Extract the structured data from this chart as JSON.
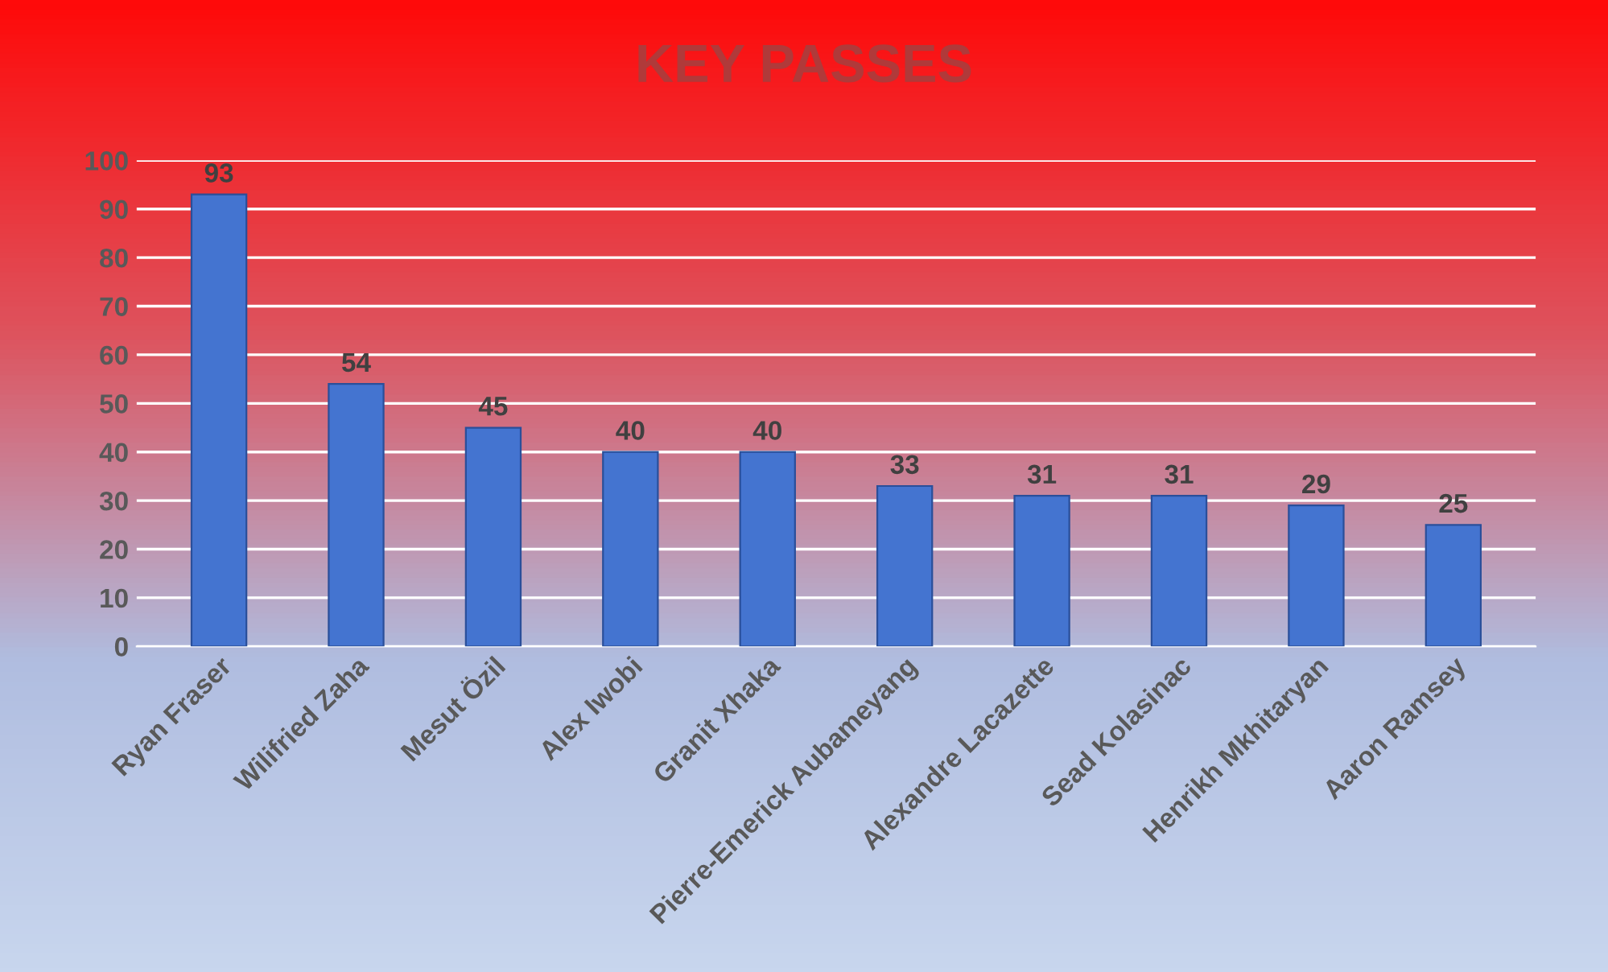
{
  "chart_data": {
    "type": "bar",
    "title": "KEY PASSES",
    "categories": [
      "Ryan Fraser",
      "Wilifried Zaha",
      "Mesut Özil",
      "Alex Iwobi",
      "Granit Xhaka",
      "Pierre-Emerick Aubameyang",
      "Alexandre Lacazette",
      "Sead Kolasinac",
      "Henrikh Mkhitaryan",
      "Aaron Ramsey"
    ],
    "values": [
      93,
      54,
      45,
      40,
      40,
      33,
      31,
      31,
      29,
      25
    ],
    "color": "#4474d0",
    "ylim": [
      0,
      100
    ],
    "yticks": [
      0,
      10,
      20,
      30,
      40,
      50,
      60,
      70,
      80,
      90,
      100
    ],
    "grid": "y",
    "data_labels": true
  }
}
